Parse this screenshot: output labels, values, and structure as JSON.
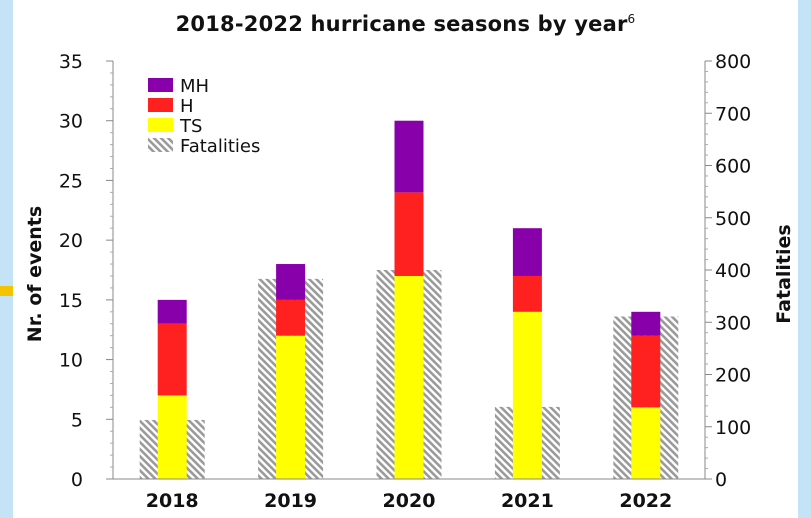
{
  "chart_data": {
    "type": "bar",
    "title": "2018-2022 hurricane seasons by year",
    "title_footnote": "6",
    "categories": [
      "2018",
      "2019",
      "2020",
      "2021",
      "2022"
    ],
    "ylabel": "Nr. of events",
    "y2label": "Fatalities",
    "ylim": [
      0,
      35
    ],
    "y2lim": [
      0,
      800
    ],
    "yticks": [
      0,
      5,
      10,
      15,
      20,
      25,
      30,
      35
    ],
    "y2ticks": [
      0,
      100,
      200,
      300,
      400,
      500,
      600,
      700,
      800
    ],
    "stacked": true,
    "series": [
      {
        "name": "TS",
        "values": [
          7,
          12,
          17,
          14,
          6
        ],
        "color": "#ffff00",
        "axis": "left"
      },
      {
        "name": "H",
        "values": [
          6,
          3,
          7,
          3,
          6
        ],
        "color": "#ff2020",
        "axis": "left"
      },
      {
        "name": "MH",
        "values": [
          2,
          3,
          6,
          4,
          2
        ],
        "color": "#8800aa",
        "axis": "left"
      },
      {
        "name": "Fatalities",
        "values": [
          113,
          383,
          400,
          138,
          311
        ],
        "pattern": "diagonal-hatch-grey",
        "axis": "right"
      }
    ],
    "legend": {
      "placement": "top-left",
      "order": [
        "MH",
        "H",
        "TS",
        "Fatalities"
      ]
    },
    "grid": false
  }
}
